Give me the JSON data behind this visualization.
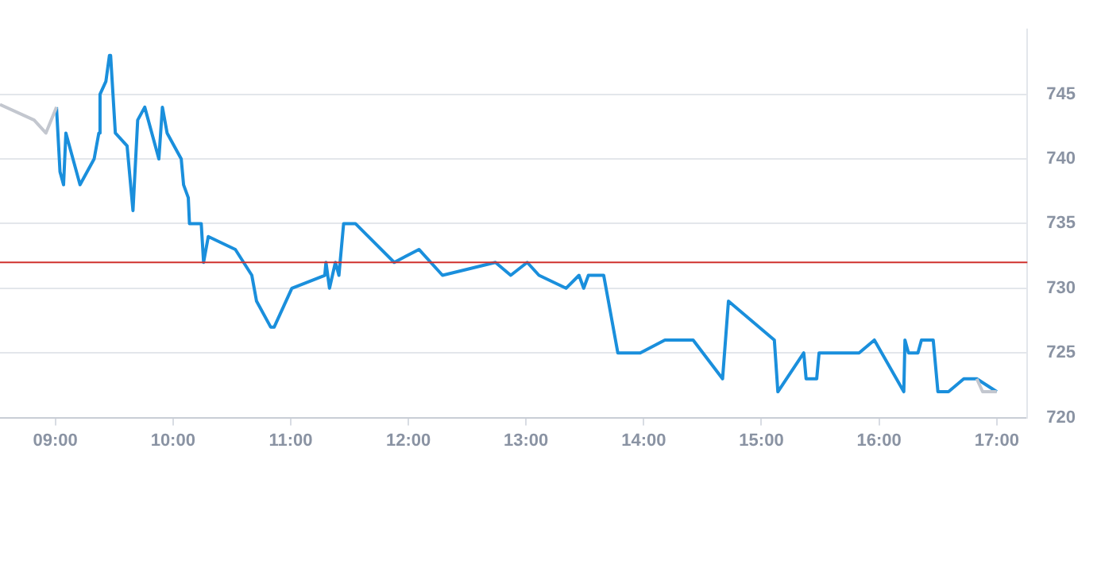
{
  "chart_data": {
    "type": "line",
    "xlim": [
      8.53,
      17.26
    ],
    "ylim": [
      720,
      750
    ],
    "xticks": [
      {
        "value": 9,
        "label": "09:00"
      },
      {
        "value": 10,
        "label": "10:00"
      },
      {
        "value": 11,
        "label": "11:00"
      },
      {
        "value": 12,
        "label": "12:00"
      },
      {
        "value": 13,
        "label": "13:00"
      },
      {
        "value": 14,
        "label": "14:00"
      },
      {
        "value": 15,
        "label": "15:00"
      },
      {
        "value": 16,
        "label": "16:00"
      },
      {
        "value": 17,
        "label": "17:00"
      }
    ],
    "yticks": [
      720,
      725,
      730,
      735,
      740,
      745
    ],
    "grid": "y",
    "legend": false,
    "marker": "none",
    "line_style": "solid",
    "ref_lines": [
      {
        "axis": "y",
        "value": 732,
        "color": "#d0312d"
      }
    ],
    "series": [
      {
        "color": "#c3c7cf",
        "x": [
          8.53,
          8.82,
          8.92,
          9.01
        ],
        "values": [
          744.2,
          743,
          742,
          744
        ]
      },
      {
        "color": "#c3c7cf",
        "x": [
          16.83,
          16.88,
          17.0
        ],
        "values": [
          723,
          722,
          722
        ]
      },
      {
        "color": "#1a8fdc",
        "x": [
          9.01,
          9.04,
          9.07,
          9.09,
          9.21,
          9.33,
          9.37,
          9.38,
          9.43,
          9.46,
          9.47,
          9.51,
          9.61,
          9.66,
          9.7,
          9.76,
          9.88,
          9.91,
          9.95,
          10.07,
          10.09,
          10.13,
          10.14,
          10.24,
          10.26,
          10.3,
          10.53,
          10.67,
          10.71,
          10.83,
          10.86,
          11.01,
          11.29,
          11.3,
          11.33,
          11.38,
          11.41,
          11.45,
          11.55,
          11.88,
          12.09,
          12.29,
          12.74,
          12.87,
          13.01,
          13.11,
          13.34,
          13.45,
          13.49,
          13.53,
          13.66,
          13.78,
          13.97,
          14.18,
          14.42,
          14.67,
          14.72,
          15.11,
          15.14,
          15.36,
          15.38,
          15.47,
          15.49,
          15.83,
          15.96,
          16.21,
          16.22,
          16.25,
          16.33,
          16.36,
          16.46,
          16.5,
          16.59,
          16.72,
          16.83,
          17.0
        ],
        "values": [
          744,
          739,
          738,
          742,
          738,
          740,
          742,
          745,
          746,
          748,
          748,
          742,
          741,
          736,
          743,
          744,
          740,
          744,
          742,
          740,
          738,
          737,
          735,
          735,
          732,
          734,
          733,
          731,
          729,
          727,
          727,
          730,
          731,
          732,
          730,
          732,
          731,
          735,
          735,
          732,
          733,
          731,
          732,
          731,
          732,
          731,
          730,
          731,
          730,
          731,
          731,
          725,
          725,
          726,
          726,
          723,
          729,
          726,
          722,
          725,
          723,
          723,
          725,
          725,
          726,
          722,
          726,
          725,
          725,
          726,
          726,
          722,
          722,
          723,
          723,
          722
        ]
      }
    ]
  }
}
